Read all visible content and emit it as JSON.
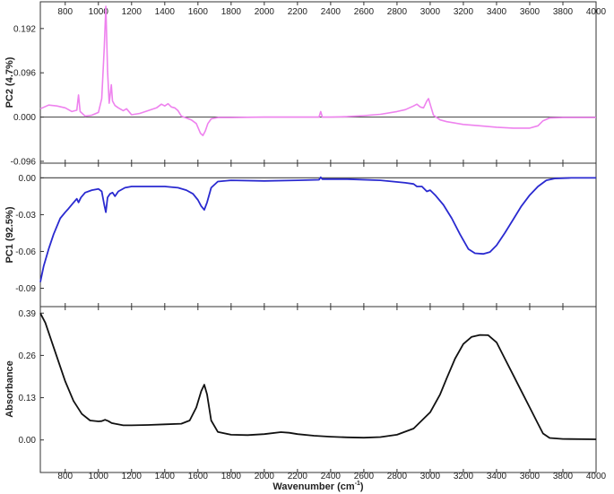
{
  "chart_data": [
    {
      "type": "line",
      "panel": "top",
      "ylabel": "PC2 (4.7%)",
      "xlim": [
        650,
        4000
      ],
      "ylim": [
        -0.1,
        0.25
      ],
      "x_ticks": [
        "800",
        "1000",
        "1200",
        "1400",
        "1600",
        "1800",
        "2000",
        "2200",
        "2400",
        "2600",
        "2800",
        "3000",
        "3200",
        "3400",
        "3600",
        "3800",
        "4000"
      ],
      "x_tick_position": "top",
      "y_ticks": [
        -0.096,
        0.0,
        0.096,
        0.192
      ],
      "y_tick_labels": [
        "-0.096",
        "0.000",
        "0.096",
        "0.192"
      ],
      "zero_line": true,
      "series": [
        {
          "color": "#ee82ee",
          "points": [
            [
              650,
              0.018
            ],
            [
              700,
              0.026
            ],
            [
              750,
              0.024
            ],
            [
              800,
              0.02
            ],
            [
              840,
              0.012
            ],
            [
              870,
              0.015
            ],
            [
              880,
              0.048
            ],
            [
              890,
              0.012
            ],
            [
              920,
              0.002
            ],
            [
              960,
              0.004
            ],
            [
              1000,
              0.01
            ],
            [
              1020,
              0.04
            ],
            [
              1035,
              0.15
            ],
            [
              1045,
              0.24
            ],
            [
              1055,
              0.1
            ],
            [
              1065,
              0.03
            ],
            [
              1078,
              0.07
            ],
            [
              1085,
              0.035
            ],
            [
              1100,
              0.025
            ],
            [
              1120,
              0.02
            ],
            [
              1150,
              0.014
            ],
            [
              1170,
              0.018
            ],
            [
              1200,
              0.005
            ],
            [
              1250,
              0.008
            ],
            [
              1300,
              0.014
            ],
            [
              1350,
              0.02
            ],
            [
              1380,
              0.028
            ],
            [
              1400,
              0.024
            ],
            [
              1420,
              0.029
            ],
            [
              1440,
              0.022
            ],
            [
              1460,
              0.02
            ],
            [
              1480,
              0.014
            ],
            [
              1500,
              0.002
            ],
            [
              1530,
              -0.002
            ],
            [
              1560,
              -0.006
            ],
            [
              1590,
              -0.014
            ],
            [
              1615,
              -0.035
            ],
            [
              1630,
              -0.04
            ],
            [
              1645,
              -0.03
            ],
            [
              1660,
              -0.014
            ],
            [
              1680,
              -0.004
            ],
            [
              1720,
              -0.001
            ],
            [
              1800,
              -0.001
            ],
            [
              2000,
              0.0
            ],
            [
              2200,
              0.0
            ],
            [
              2330,
              0.0
            ],
            [
              2340,
              0.012
            ],
            [
              2350,
              0.0
            ],
            [
              2400,
              0.0
            ],
            [
              2500,
              0.001
            ],
            [
              2600,
              0.003
            ],
            [
              2700,
              0.006
            ],
            [
              2800,
              0.012
            ],
            [
              2850,
              0.016
            ],
            [
              2900,
              0.024
            ],
            [
              2920,
              0.028
            ],
            [
              2940,
              0.022
            ],
            [
              2960,
              0.02
            ],
            [
              2980,
              0.035
            ],
            [
              2990,
              0.04
            ],
            [
              3000,
              0.028
            ],
            [
              3020,
              0.004
            ],
            [
              3060,
              -0.006
            ],
            [
              3100,
              -0.01
            ],
            [
              3200,
              -0.016
            ],
            [
              3300,
              -0.019
            ],
            [
              3400,
              -0.022
            ],
            [
              3500,
              -0.024
            ],
            [
              3600,
              -0.024
            ],
            [
              3650,
              -0.019
            ],
            [
              3680,
              -0.008
            ],
            [
              3720,
              -0.002
            ],
            [
              3800,
              -0.001
            ],
            [
              4000,
              -0.001
            ]
          ]
        }
      ]
    },
    {
      "type": "line",
      "panel": "middle",
      "ylabel": "PC1 (92.5%)",
      "xlim": [
        650,
        4000
      ],
      "ylim": [
        -0.105,
        0.012
      ],
      "y_ticks": [
        -0.09,
        -0.06,
        -0.03,
        0.0
      ],
      "y_tick_labels": [
        "-0.09",
        "-0.06",
        "-0.03",
        "0.00"
      ],
      "zero_line": true,
      "series": [
        {
          "color": "#2a2ad0",
          "points": [
            [
              650,
              -0.085
            ],
            [
              670,
              -0.072
            ],
            [
              700,
              -0.058
            ],
            [
              730,
              -0.046
            ],
            [
              770,
              -0.033
            ],
            [
              800,
              -0.028
            ],
            [
              820,
              -0.025
            ],
            [
              845,
              -0.021
            ],
            [
              870,
              -0.017
            ],
            [
              880,
              -0.02
            ],
            [
              895,
              -0.016
            ],
            [
              920,
              -0.012
            ],
            [
              960,
              -0.01
            ],
            [
              1000,
              -0.009
            ],
            [
              1020,
              -0.011
            ],
            [
              1035,
              -0.022
            ],
            [
              1045,
              -0.028
            ],
            [
              1055,
              -0.016
            ],
            [
              1070,
              -0.013
            ],
            [
              1085,
              -0.012
            ],
            [
              1100,
              -0.015
            ],
            [
              1120,
              -0.011
            ],
            [
              1160,
              -0.008
            ],
            [
              1200,
              -0.007
            ],
            [
              1300,
              -0.007
            ],
            [
              1400,
              -0.007
            ],
            [
              1480,
              -0.008
            ],
            [
              1530,
              -0.01
            ],
            [
              1570,
              -0.013
            ],
            [
              1600,
              -0.018
            ],
            [
              1620,
              -0.023
            ],
            [
              1638,
              -0.026
            ],
            [
              1655,
              -0.02
            ],
            [
              1680,
              -0.008
            ],
            [
              1720,
              -0.003
            ],
            [
              1800,
              -0.002
            ],
            [
              2000,
              -0.0025
            ],
            [
              2200,
              -0.002
            ],
            [
              2330,
              -0.0015
            ],
            [
              2340,
              0.0005
            ],
            [
              2350,
              -0.001
            ],
            [
              2500,
              -0.001
            ],
            [
              2700,
              -0.002
            ],
            [
              2850,
              -0.004
            ],
            [
              2900,
              -0.005
            ],
            [
              2920,
              -0.007
            ],
            [
              2950,
              -0.007
            ],
            [
              2980,
              -0.011
            ],
            [
              3000,
              -0.01
            ],
            [
              3030,
              -0.014
            ],
            [
              3080,
              -0.022
            ],
            [
              3130,
              -0.033
            ],
            [
              3180,
              -0.046
            ],
            [
              3230,
              -0.058
            ],
            [
              3270,
              -0.0615
            ],
            [
              3320,
              -0.062
            ],
            [
              3360,
              -0.0605
            ],
            [
              3400,
              -0.055
            ],
            [
              3450,
              -0.045
            ],
            [
              3500,
              -0.034
            ],
            [
              3550,
              -0.023
            ],
            [
              3600,
              -0.014
            ],
            [
              3650,
              -0.007
            ],
            [
              3700,
              -0.002
            ],
            [
              3750,
              -0.0005
            ],
            [
              3850,
              0.0
            ],
            [
              4000,
              0.0
            ]
          ]
        }
      ]
    },
    {
      "type": "line",
      "panel": "bottom",
      "ylabel": "Absorbance",
      "xlabel": "Wavenumber (cm",
      "xlabel_sup": "-1",
      "xlabel_end": ")",
      "xlim": [
        650,
        4000
      ],
      "ylim": [
        -0.1,
        0.41
      ],
      "x_ticks": [
        "800",
        "1000",
        "1200",
        "1400",
        "1600",
        "1800",
        "2000",
        "2200",
        "2400",
        "2600",
        "2800",
        "3000",
        "3200",
        "3400",
        "3600",
        "3800",
        "4000"
      ],
      "y_ticks": [
        0.0,
        0.13,
        0.26,
        0.39
      ],
      "y_tick_labels": [
        "0.00",
        "0.13",
        "0.26",
        "0.39"
      ],
      "series": [
        {
          "color": "#111111",
          "points": [
            [
              650,
              0.39
            ],
            [
              680,
              0.36
            ],
            [
              720,
              0.3
            ],
            [
              760,
              0.24
            ],
            [
              800,
              0.18
            ],
            [
              850,
              0.12
            ],
            [
              900,
              0.08
            ],
            [
              950,
              0.06
            ],
            [
              1000,
              0.057
            ],
            [
              1020,
              0.058
            ],
            [
              1040,
              0.062
            ],
            [
              1060,
              0.058
            ],
            [
              1080,
              0.052
            ],
            [
              1100,
              0.05
            ],
            [
              1150,
              0.045
            ],
            [
              1200,
              0.045
            ],
            [
              1300,
              0.046
            ],
            [
              1400,
              0.048
            ],
            [
              1500,
              0.05
            ],
            [
              1550,
              0.06
            ],
            [
              1590,
              0.1
            ],
            [
              1620,
              0.15
            ],
            [
              1638,
              0.17
            ],
            [
              1655,
              0.14
            ],
            [
              1680,
              0.06
            ],
            [
              1720,
              0.025
            ],
            [
              1800,
              0.016
            ],
            [
              1900,
              0.015
            ],
            [
              2000,
              0.018
            ],
            [
              2100,
              0.024
            ],
            [
              2150,
              0.022
            ],
            [
              2200,
              0.018
            ],
            [
              2300,
              0.013
            ],
            [
              2400,
              0.01
            ],
            [
              2500,
              0.008
            ],
            [
              2600,
              0.007
            ],
            [
              2700,
              0.009
            ],
            [
              2800,
              0.016
            ],
            [
              2900,
              0.035
            ],
            [
              3000,
              0.085
            ],
            [
              3060,
              0.14
            ],
            [
              3100,
              0.19
            ],
            [
              3150,
              0.25
            ],
            [
              3200,
              0.295
            ],
            [
              3250,
              0.317
            ],
            [
              3300,
              0.323
            ],
            [
              3350,
              0.322
            ],
            [
              3400,
              0.3
            ],
            [
              3450,
              0.25
            ],
            [
              3500,
              0.2
            ],
            [
              3550,
              0.15
            ],
            [
              3600,
              0.1
            ],
            [
              3650,
              0.05
            ],
            [
              3680,
              0.02
            ],
            [
              3720,
              0.006
            ],
            [
              3800,
              0.003
            ],
            [
              4000,
              0.002
            ]
          ]
        }
      ]
    }
  ]
}
